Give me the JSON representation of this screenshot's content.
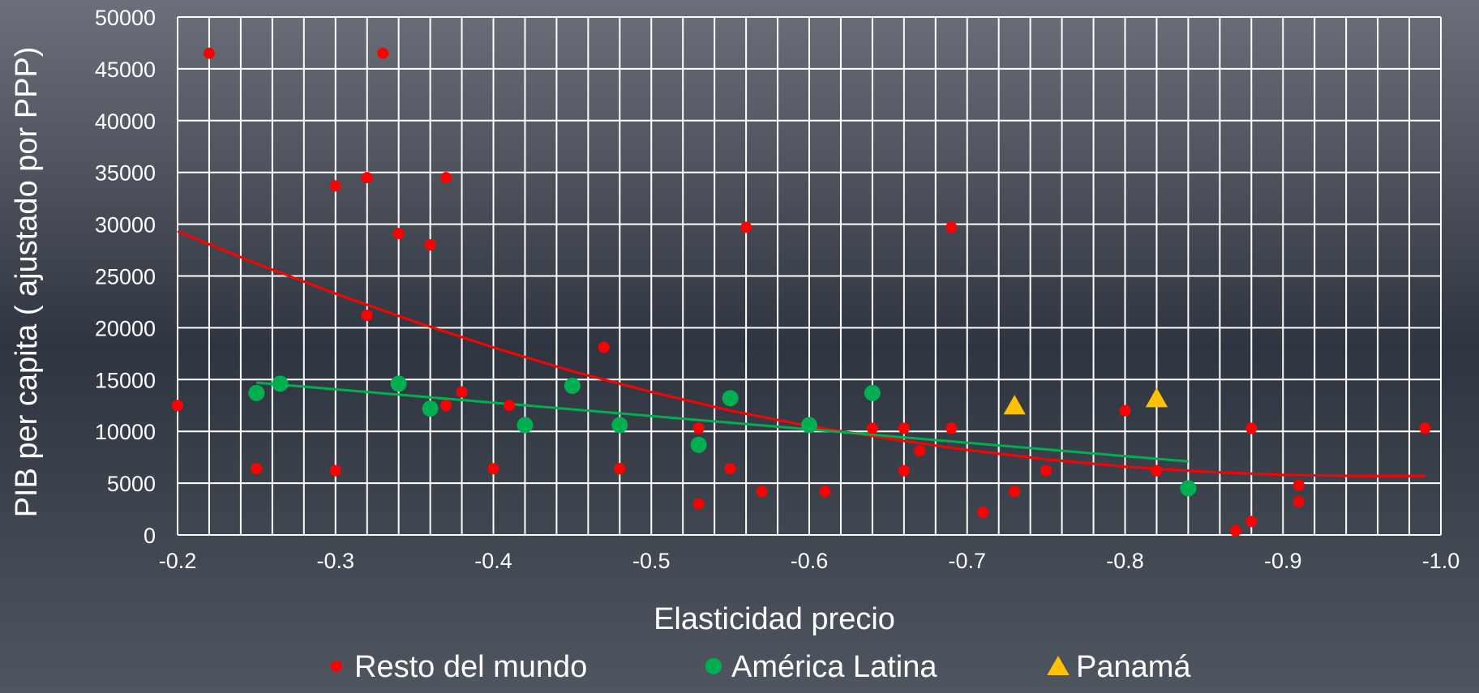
{
  "chart_data": {
    "type": "scatter",
    "xlabel": "Elasticidad precio",
    "ylabel": "PIB per capita  ( ajustado por PPP)",
    "xlim": [
      -0.2,
      -1.0
    ],
    "ylim": [
      0,
      50000
    ],
    "grid": true,
    "legend_position": "bottom",
    "x_ticks": [
      "-0.2",
      "-0.3",
      "-0.4",
      "-0.5",
      "-0.6",
      "-0.7",
      "-0.8",
      "-0.9",
      "-1.0"
    ],
    "y_ticks": [
      "0",
      "5000",
      "10000",
      "15000",
      "20000",
      "25000",
      "30000",
      "35000",
      "40000",
      "45000",
      "50000"
    ],
    "series": [
      {
        "name": "Resto del mundo",
        "marker": "circle-small",
        "color": "#ff0000",
        "points": [
          [
            -0.2,
            12500
          ],
          [
            -0.22,
            46500
          ],
          [
            -0.25,
            6400
          ],
          [
            -0.3,
            33700
          ],
          [
            -0.3,
            6200
          ],
          [
            -0.32,
            34500
          ],
          [
            -0.32,
            21200
          ],
          [
            -0.33,
            46500
          ],
          [
            -0.34,
            29100
          ],
          [
            -0.36,
            28000
          ],
          [
            -0.37,
            34500
          ],
          [
            -0.37,
            12500
          ],
          [
            -0.38,
            13800
          ],
          [
            -0.4,
            6400
          ],
          [
            -0.41,
            12500
          ],
          [
            -0.47,
            18100
          ],
          [
            -0.48,
            6400
          ],
          [
            -0.53,
            10300
          ],
          [
            -0.53,
            3000
          ],
          [
            -0.55,
            6400
          ],
          [
            -0.56,
            29700
          ],
          [
            -0.57,
            4200
          ],
          [
            -0.61,
            4200
          ],
          [
            -0.64,
            10300
          ],
          [
            -0.66,
            10300
          ],
          [
            -0.66,
            6200
          ],
          [
            -0.67,
            8100
          ],
          [
            -0.69,
            29700
          ],
          [
            -0.69,
            10300
          ],
          [
            -0.71,
            2200
          ],
          [
            -0.73,
            4200
          ],
          [
            -0.75,
            6200
          ],
          [
            -0.8,
            12000
          ],
          [
            -0.82,
            6200
          ],
          [
            -0.87,
            400
          ],
          [
            -0.88,
            10300
          ],
          [
            -0.88,
            1300
          ],
          [
            -0.91,
            4800
          ],
          [
            -0.91,
            3200
          ],
          [
            -0.99,
            10300
          ]
        ]
      },
      {
        "name": "América Latina",
        "marker": "circle-large",
        "color": "#00b050",
        "points": [
          [
            -0.25,
            13700
          ],
          [
            -0.265,
            14600
          ],
          [
            -0.34,
            14600
          ],
          [
            -0.36,
            12200
          ],
          [
            -0.42,
            10600
          ],
          [
            -0.45,
            14400
          ],
          [
            -0.48,
            10600
          ],
          [
            -0.53,
            8700
          ],
          [
            -0.55,
            13200
          ],
          [
            -0.6,
            10600
          ],
          [
            -0.64,
            13700
          ],
          [
            -0.84,
            4500
          ]
        ]
      },
      {
        "name": "Panamá",
        "marker": "triangle",
        "color": "#ffc000",
        "points": [
          [
            -0.73,
            12500
          ],
          [
            -0.82,
            13200
          ]
        ]
      }
    ],
    "trendlines": [
      {
        "series": "Resto del mundo",
        "color": "#ff0000",
        "points": [
          [
            -0.2,
            29300
          ],
          [
            -0.25,
            26200
          ],
          [
            -0.3,
            23300
          ],
          [
            -0.35,
            20600
          ],
          [
            -0.4,
            18100
          ],
          [
            -0.45,
            15800
          ],
          [
            -0.5,
            13800
          ],
          [
            -0.55,
            12000
          ],
          [
            -0.6,
            10500
          ],
          [
            -0.65,
            9300
          ],
          [
            -0.7,
            8200
          ],
          [
            -0.75,
            7300
          ],
          [
            -0.8,
            6600
          ],
          [
            -0.85,
            6100
          ],
          [
            -0.9,
            5800
          ],
          [
            -0.95,
            5700
          ],
          [
            -0.99,
            5700
          ]
        ]
      },
      {
        "series": "América Latina",
        "color": "#00b050",
        "points": [
          [
            -0.25,
            14700
          ],
          [
            -0.84,
            7100
          ]
        ]
      }
    ]
  }
}
